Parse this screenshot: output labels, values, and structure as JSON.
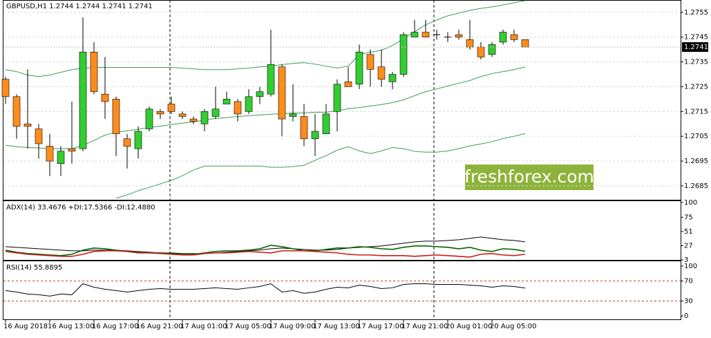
{
  "chart_data": [
    {
      "type": "candlestick",
      "title": "GBPUSD,H1  1.2744 1.2744 1.2741 1.2741",
      "annotation": "freshforex.com",
      "categories": [
        "16 Aug 2018",
        null,
        null,
        null,
        "16 Aug 13:00",
        null,
        null,
        null,
        "16 Aug 17:00",
        null,
        null,
        null,
        "16 Aug 21:00",
        null,
        null,
        null,
        "17 Aug 01:00",
        null,
        null,
        null,
        "17 Aug 05:00",
        null,
        null,
        null,
        "17 Aug 09:00",
        null,
        null,
        null,
        "17 Aug 13:00",
        null,
        null,
        null,
        "17 Aug 17:00",
        null,
        null,
        null,
        "17 Aug 21:00",
        null,
        null,
        null,
        "20 Aug 01:00",
        null,
        null,
        null,
        "20 Aug 05:00",
        null,
        null,
        null
      ],
      "open": [
        1.2728,
        1.2721,
        1.271,
        1.2708,
        1.2701,
        1.2694,
        1.27,
        1.27,
        1.2739,
        1.2722,
        1.272,
        1.2704,
        1.27,
        1.2708,
        1.2715,
        1.2718,
        1.2714,
        1.2712,
        1.271,
        1.2713,
        1.2718,
        1.2719,
        1.2715,
        1.2721,
        1.2722,
        1.2733,
        1.2713,
        1.2713,
        1.2704,
        1.2706,
        1.2715,
        1.2727,
        1.2726,
        1.2738,
        1.2733,
        1.2727,
        1.273,
        1.2745,
        1.2747,
        1.2746,
        1.2745,
        1.2746,
        1.2744,
        1.2741,
        1.2738,
        1.2743,
        1.2746,
        1.2744
      ],
      "high": [
        1.2729,
        1.2722,
        1.2732,
        1.271,
        1.2706,
        1.2701,
        1.2719,
        1.2753,
        1.2743,
        1.2737,
        1.2721,
        1.2706,
        1.2709,
        1.2717,
        1.2716,
        1.2721,
        1.2715,
        1.2713,
        1.2716,
        1.2725,
        1.2723,
        1.272,
        1.2724,
        1.2725,
        1.2748,
        1.2734,
        1.2726,
        1.2718,
        1.2714,
        1.2718,
        1.2728,
        1.2733,
        1.2742,
        1.274,
        1.274,
        1.2731,
        1.2747,
        1.2752,
        1.2752,
        1.2748,
        1.2747,
        1.2748,
        1.2752,
        1.2743,
        1.2743,
        1.2748,
        1.2748,
        1.2744
      ],
      "low": [
        1.2718,
        1.2704,
        1.27,
        1.2696,
        1.2689,
        1.2689,
        1.2694,
        1.2699,
        1.2722,
        1.2712,
        1.2697,
        1.2692,
        1.2696,
        1.2707,
        1.2712,
        1.2714,
        1.2712,
        1.271,
        1.2707,
        1.2712,
        1.2718,
        1.2711,
        1.2714,
        1.2718,
        1.2721,
        1.2705,
        1.2711,
        1.2701,
        1.2697,
        1.2706,
        1.2707,
        1.2725,
        1.2724,
        1.2725,
        1.2725,
        1.2724,
        1.2729,
        1.2745,
        1.2745,
        1.2744,
        1.2743,
        1.2744,
        1.274,
        1.2736,
        1.2737,
        1.2742,
        1.2743,
        1.2741
      ],
      "close": [
        1.2721,
        1.2709,
        1.2709,
        1.2702,
        1.2695,
        1.2699,
        1.2699,
        1.2739,
        1.2723,
        1.2719,
        1.2706,
        1.2701,
        1.2707,
        1.2716,
        1.2714,
        1.2715,
        1.2713,
        1.2711,
        1.2715,
        1.2716,
        1.272,
        1.2714,
        1.2721,
        1.2723,
        1.2734,
        1.2712,
        1.2714,
        1.2704,
        1.2707,
        1.2714,
        1.2726,
        1.2725,
        1.2739,
        1.2732,
        1.2728,
        1.273,
        1.2746,
        1.2747,
        1.2745,
        1.2746,
        1.2745,
        1.2745,
        1.2741,
        1.2737,
        1.2742,
        1.2747,
        1.2744,
        1.2741
      ],
      "up_color": "#32cd32",
      "down_color": "#ff8c1a",
      "doji_color": "#000000",
      "lines": [
        {
          "color": "#3c9a5a",
          "values": [
            1.27319,
            1.27311,
            1.27297,
            1.27291,
            1.27297,
            1.27308,
            1.27319,
            1.27325,
            1.27328,
            1.27328,
            1.27328,
            1.27328,
            1.27328,
            1.27328,
            1.27328,
            1.27328,
            1.27325,
            1.27322,
            1.27319,
            1.27319,
            1.27319,
            1.27322,
            1.27325,
            1.2733,
            1.27333,
            1.27339,
            1.27344,
            1.27347,
            1.27341,
            1.27333,
            1.27325,
            1.27333,
            1.2738,
            1.27389,
            1.27397,
            1.27416,
            1.27444,
            1.27472,
            1.275,
            1.27519,
            1.27536,
            1.27547,
            1.27558,
            1.27566,
            1.27572,
            1.2758,
            1.27589,
            1.27597
          ]
        },
        {
          "color": "#3c9a5a",
          "values": [
            1.27014,
            1.27008,
            1.27005,
            1.27003,
            1.27,
            1.27,
            1.27,
            1.27014,
            1.27033,
            1.27055,
            1.27066,
            1.27072,
            1.27078,
            1.27086,
            1.27091,
            1.27097,
            1.27103,
            1.27108,
            1.27116,
            1.27122,
            1.27125,
            1.2713,
            1.27133,
            1.27136,
            1.27139,
            1.27141,
            1.27144,
            1.27144,
            1.27147,
            1.27147,
            1.27153,
            1.27161,
            1.27166,
            1.27172,
            1.27178,
            1.27186,
            1.27197,
            1.27214,
            1.2723,
            1.27241,
            1.27253,
            1.27264,
            1.27275,
            1.27291,
            1.27303,
            1.27311,
            1.27319,
            1.2733
          ]
        },
        {
          "color": "#3c9a5a",
          "values": [
            null,
            null,
            null,
            null,
            null,
            null,
            null,
            null,
            null,
            null,
            1.268,
            1.26814,
            1.2683,
            1.26844,
            1.26858,
            1.26872,
            1.26891,
            1.26914,
            1.2693,
            1.2693,
            1.2693,
            1.2693,
            1.2693,
            1.2693,
            1.26925,
            1.26925,
            1.26928,
            1.26933,
            1.26953,
            1.26972,
            1.26994,
            1.27008,
            1.26991,
            1.2698,
            1.26991,
            1.27005,
            1.27,
            1.26989,
            1.26986,
            1.26986,
            1.26991,
            1.27,
            1.27011,
            1.27019,
            1.27028,
            1.27041,
            1.2705,
            1.27061
          ]
        }
      ],
      "last_price": 1.2741,
      "ylim": [
        1.26794,
        1.27597
      ],
      "yticks": [
        1.2685,
        1.2695,
        1.2705,
        1.2715,
        1.2725,
        1.2735,
        1.2745,
        1.2755
      ],
      "grid": true
    },
    {
      "type": "line",
      "title": "ADX(14) 33.4676 +DI:17.5366 -DI:12.4880",
      "series": [
        {
          "color": "#000000",
          "values": [
            25.3,
            24.2,
            23.0,
            21.8,
            20.7,
            19.5,
            18.3,
            18.3,
            19.5,
            19.5,
            19.5,
            18.3,
            17.2,
            16.0,
            14.8,
            14.8,
            13.7,
            13.7,
            13.7,
            14.8,
            16.0,
            17.2,
            18.3,
            19.5,
            21.8,
            23.0,
            21.8,
            20.7,
            19.5,
            19.5,
            20.7,
            23.0,
            24.2,
            25.3,
            26.5,
            28.8,
            31.2,
            33.5,
            34.7,
            34.7,
            35.8,
            37.0,
            39.3,
            41.7,
            39.3,
            37.0,
            35.8,
            33.5
          ]
        },
        {
          "color": "#006400",
          "values": [
            19.5,
            16.0,
            13.7,
            12.5,
            11.3,
            10.2,
            12.5,
            19.5,
            23.0,
            21.8,
            19.5,
            17.2,
            14.8,
            14.8,
            14.8,
            13.7,
            12.5,
            12.5,
            14.8,
            17.2,
            18.3,
            18.3,
            19.5,
            21.8,
            27.7,
            25.3,
            21.8,
            18.3,
            18.3,
            20.7,
            23.0,
            23.0,
            25.3,
            24.2,
            21.8,
            20.7,
            24.2,
            26.5,
            26.5,
            25.3,
            24.2,
            21.8,
            24.2,
            19.5,
            17.2,
            21.8,
            20.7,
            17.5
          ]
        },
        {
          "color": "#d01818",
          "values": [
            17.2,
            14.8,
            12.5,
            11.3,
            10.2,
            9.0,
            9.0,
            12.5,
            17.2,
            18.3,
            18.3,
            17.2,
            16.0,
            14.8,
            13.7,
            12.5,
            11.3,
            11.3,
            13.7,
            14.8,
            14.8,
            16.0,
            17.2,
            16.0,
            14.8,
            18.3,
            18.3,
            18.3,
            17.2,
            16.0,
            14.8,
            12.5,
            11.3,
            11.3,
            10.2,
            10.2,
            10.2,
            9.0,
            10.2,
            11.3,
            10.2,
            9.0,
            7.8,
            12.5,
            13.7,
            11.3,
            10.2,
            12.5
          ]
        }
      ],
      "ylim": [
        3,
        101
      ],
      "yticks": [
        100,
        75,
        51,
        27,
        3
      ]
    },
    {
      "type": "line",
      "title": "RSI(14) 55.8895",
      "series": [
        {
          "color": "#000000",
          "values": [
            50.8,
            48.0,
            43.9,
            42.5,
            39.8,
            43.9,
            42.5,
            64.5,
            57.6,
            53.5,
            50.8,
            48.0,
            50.8,
            53.5,
            54.9,
            53.5,
            53.5,
            53.5,
            54.9,
            56.3,
            54.9,
            53.5,
            56.3,
            59.0,
            64.5,
            48.0,
            50.8,
            45.3,
            48.0,
            53.5,
            57.6,
            56.3,
            61.7,
            59.0,
            54.9,
            56.3,
            63.1,
            64.5,
            64.5,
            63.1,
            63.1,
            63.1,
            61.7,
            60.4,
            57.6,
            60.4,
            59.0,
            55.9
          ]
        }
      ],
      "levels": [
        70,
        30
      ],
      "level_color": "#c0392b",
      "ylim": [
        -8,
        108
      ],
      "yticks": [
        100,
        70,
        30,
        0
      ]
    }
  ]
}
